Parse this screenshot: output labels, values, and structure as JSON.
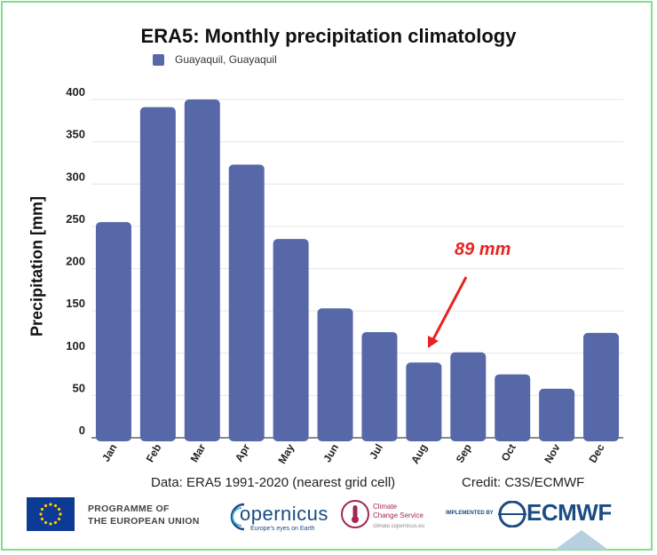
{
  "chart_data": {
    "type": "bar",
    "title": "ERA5: Monthly precipitation climatology",
    "legend": {
      "placement": "top-left",
      "entries": [
        "Guayaquil, Guayaquil"
      ]
    },
    "ylabel": "Precipitation [mm]",
    "xlabel": "",
    "ylim": [
      0,
      400
    ],
    "yticks": [
      0,
      50,
      100,
      150,
      200,
      250,
      300,
      350,
      400
    ],
    "grid": true,
    "categories": [
      "Jan",
      "Feb",
      "Mar",
      "Apr",
      "May",
      "Jun",
      "Jul",
      "Aug",
      "Sep",
      "Oct",
      "Nov",
      "Dec"
    ],
    "series": [
      {
        "name": "Guayaquil, Guayaquil",
        "color": "#5768a8",
        "values": [
          255,
          391,
          400,
          323,
          235,
          153,
          125,
          89,
          101,
          75,
          58,
          124
        ]
      }
    ],
    "annotation": {
      "text": "89 mm",
      "category": "Aug",
      "color": "#e8231f"
    }
  },
  "credits": {
    "data": "Data: ERA5 1991-2020 (nearest grid cell)",
    "credit": "Credit: C3S/ECMWF"
  },
  "logos": {
    "eu_line1": "PROGRAMME OF",
    "eu_line2": "THE EUROPEAN UNION",
    "copernicus": "opernicus",
    "copernicus_tagline": "Europe's eyes on Earth",
    "c3s_line1": "Climate",
    "c3s_line2": "Change Service",
    "c3s_url": "climate.copernicus.eu",
    "implemented_by": "IMPLEMENTED BY",
    "ecmwf": "ECMWF"
  }
}
